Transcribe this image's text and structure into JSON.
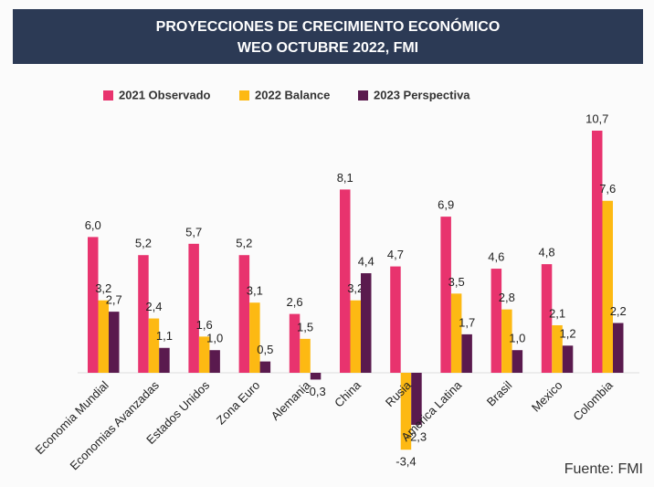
{
  "chart_data": {
    "type": "bar",
    "title": "PROYECCIONES DE CRECIMIENTO ECONÓMICO",
    "subtitle": "WEO OCTUBRE 2022, FMI",
    "source": "Fuente: FMI",
    "categories": [
      "Economia Mundial",
      "Economias Avanzadas",
      "Estados Unidos",
      "Zona Euro",
      "Alemania",
      "China",
      "Rusia",
      "America Latina",
      "Brasil",
      "Mexico",
      "Colombia"
    ],
    "series": [
      {
        "name": "2021 Observado",
        "color": "#e8336e",
        "values": [
          6.0,
          5.2,
          5.7,
          5.2,
          2.6,
          8.1,
          4.7,
          6.9,
          4.6,
          4.8,
          10.7
        ],
        "value_labels": [
          "6,0",
          "5,2",
          "5,7",
          "5,2",
          "2,6",
          "8,1",
          "4,7",
          "6,9",
          "4,6",
          "4,8",
          "10,7"
        ]
      },
      {
        "name": "2022 Balance",
        "color": "#fdb913",
        "values": [
          3.2,
          2.4,
          1.6,
          3.1,
          1.5,
          3.2,
          -3.4,
          3.5,
          2.8,
          2.1,
          7.6
        ],
        "value_labels": [
          "3,2",
          "2,4",
          "1,6",
          "3,1",
          "1,5",
          "3,2",
          "-3,4",
          "3,5",
          "2,8",
          "2,1",
          "7,6"
        ]
      },
      {
        "name": "2023 Perspectiva",
        "color": "#5a1a4e",
        "values": [
          2.7,
          1.1,
          1.0,
          0.5,
          -0.3,
          4.4,
          -2.3,
          1.7,
          1.0,
          1.2,
          2.2
        ],
        "value_labels": [
          "2,7",
          "1,1",
          "1,0",
          "0,5",
          "-0,3",
          "4,4",
          "-2,3",
          "1,7",
          "1,0",
          "1,2",
          "2,2"
        ]
      }
    ]
  }
}
